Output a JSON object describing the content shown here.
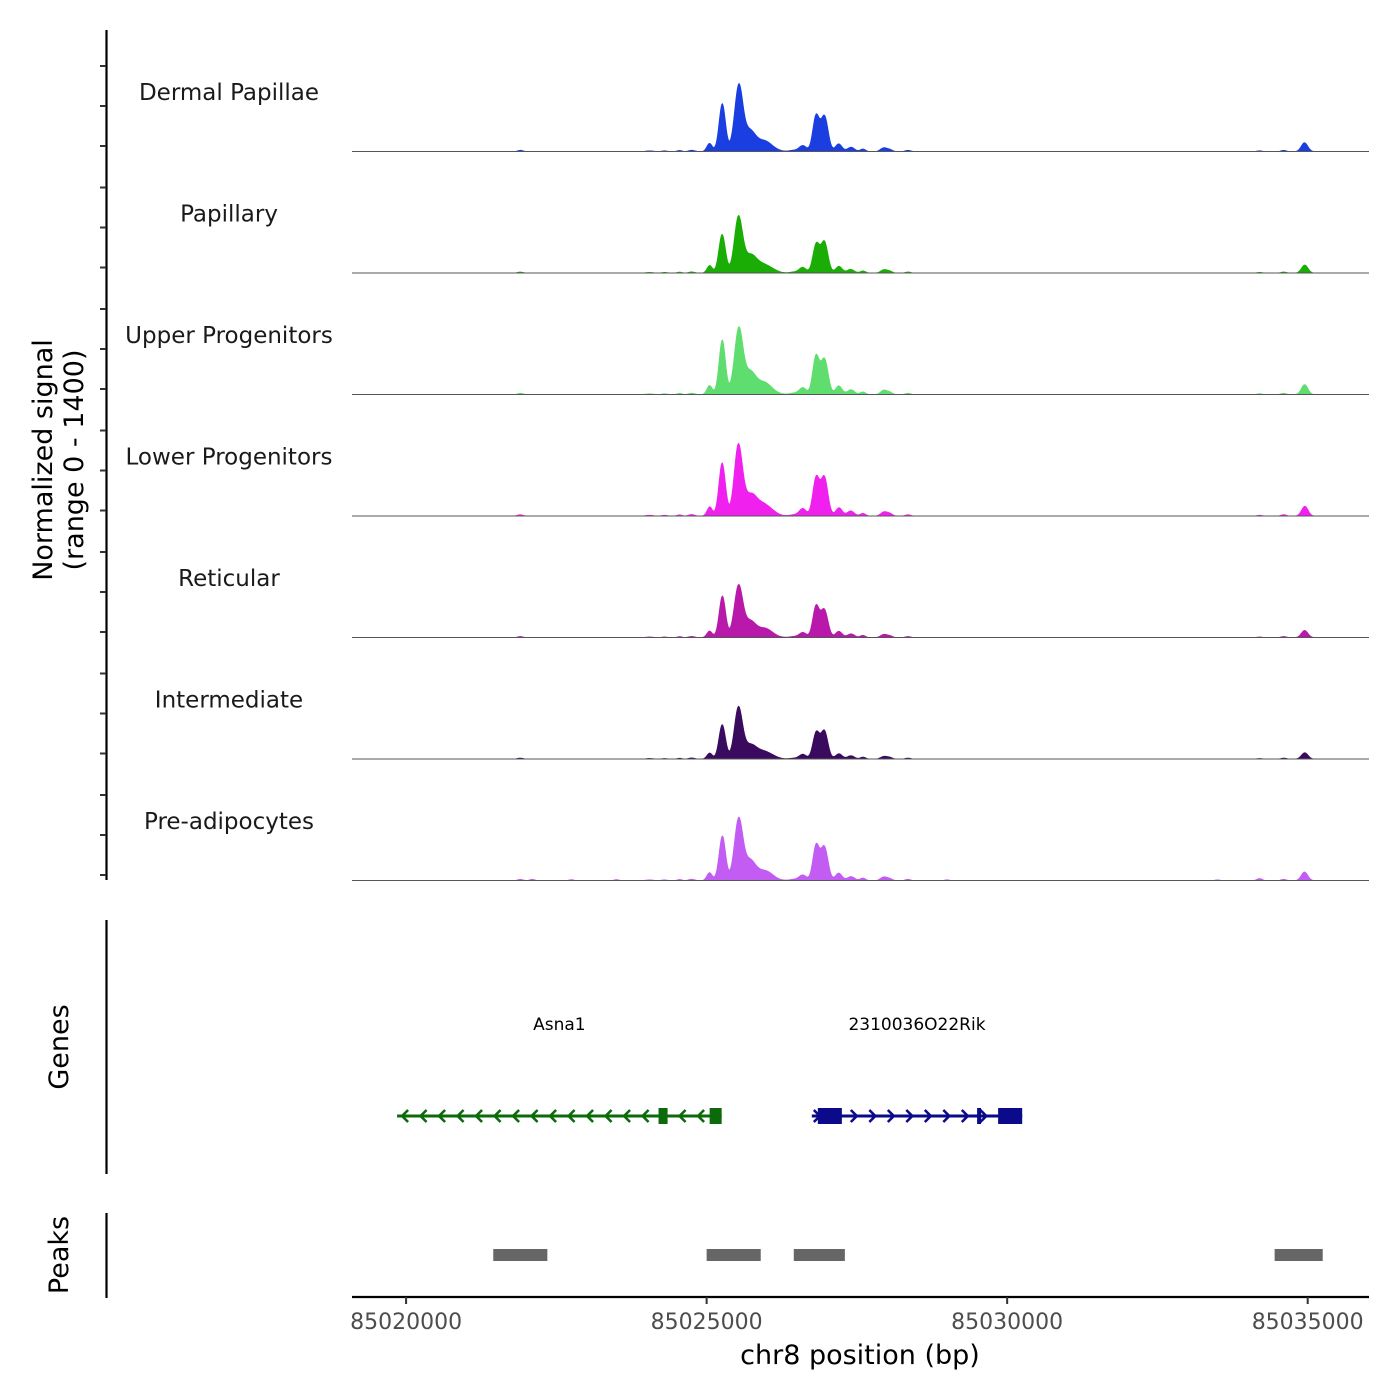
{
  "chart_data": {
    "type": "area",
    "title": "",
    "chromosome": "chr8",
    "xlabel": "chr8 position (bp)",
    "xlim": [
      85019100,
      85036020
    ],
    "xticks": [
      85020000,
      85025000,
      85030000,
      85035000
    ],
    "xtick_labels": [
      "85020000",
      "85025000",
      "85030000",
      "85035000"
    ],
    "track_ylabel_line1": "Normalized signal",
    "track_ylabel_line2": "(range 0 - 1400)",
    "ylim": [
      0,
      1400
    ],
    "genes_label": "Genes",
    "peaks_label": "Peaks",
    "tracks": [
      {
        "name": "Dermal Papillae",
        "color": "#1a3ee0",
        "scale": 0.62,
        "adip": 0.0
      },
      {
        "name": "Papillary",
        "color": "#19ad05",
        "scale": 0.53,
        "adip": 0.0
      },
      {
        "name": "Upper Progenitors",
        "color": "#5fde6f",
        "scale": 0.67,
        "adip": 0.0
      },
      {
        "name": "Lower Progenitors",
        "color": "#f021ef",
        "scale": 0.68,
        "adip": 0.0
      },
      {
        "name": "Reticular",
        "color": "#b819aa",
        "scale": 0.51,
        "adip": 0.0
      },
      {
        "name": "Intermediate",
        "color": "#3a0a5e",
        "scale": 0.46,
        "adip": 0.0
      },
      {
        "name": "Pre-adipocytes",
        "color": "#c25cf2",
        "scale": 0.59,
        "adip": 1.0
      }
    ],
    "genes": [
      {
        "name": "Asna1",
        "strand": "-",
        "start": 85019850,
        "end": 85025250,
        "color": "#0b6b0b",
        "exons": [
          [
            85024200,
            85024350
          ],
          [
            85025050,
            85025250
          ]
        ]
      },
      {
        "name": "2310036O22Rik",
        "strand": "+",
        "start": 85026750,
        "end": 85030250,
        "color": "#0a0a8a",
        "exons": [
          [
            85026850,
            85027250
          ],
          [
            85029500,
            85029550
          ],
          [
            85029850,
            85030250
          ]
        ]
      }
    ],
    "peaks": [
      [
        85021450,
        85022350
      ],
      [
        85025000,
        85025900
      ],
      [
        85026450,
        85027300
      ],
      [
        85034450,
        85035250
      ]
    ]
  }
}
